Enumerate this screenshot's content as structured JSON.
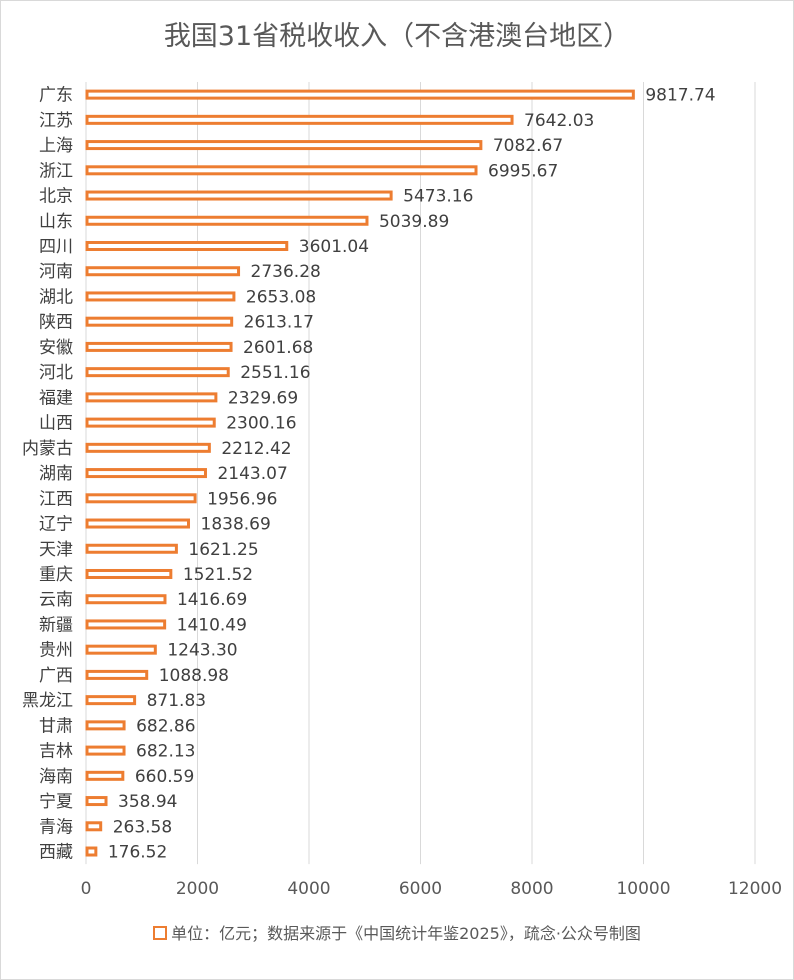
{
  "chart_data": {
    "type": "bar",
    "orientation": "horizontal",
    "title": "我国31省税收收入（不含港澳台地区）",
    "categories": [
      "广东",
      "江苏",
      "上海",
      "浙江",
      "北京",
      "山东",
      "四川",
      "河南",
      "湖北",
      "陕西",
      "安徽",
      "河北",
      "福建",
      "山西",
      "内蒙古",
      "湖南",
      "江西",
      "辽宁",
      "天津",
      "重庆",
      "云南",
      "新疆",
      "贵州",
      "广西",
      "黑龙江",
      "甘肃",
      "吉林",
      "海南",
      "宁夏",
      "青海",
      "西藏"
    ],
    "values": [
      9817.74,
      7642.03,
      7082.67,
      6995.67,
      5473.16,
      5039.89,
      3601.04,
      2736.28,
      2653.08,
      2613.17,
      2601.68,
      2551.16,
      2329.69,
      2300.16,
      2212.42,
      2143.07,
      1956.96,
      1838.69,
      1621.25,
      1521.52,
      1416.69,
      1410.49,
      1243.3,
      1088.98,
      871.83,
      682.86,
      682.13,
      660.59,
      358.94,
      263.58,
      176.52
    ],
    "value_labels": [
      "9817.74",
      "7642.03",
      "7082.67",
      "6995.67",
      "5473.16",
      "5039.89",
      "3601.04",
      "2736.28",
      "2653.08",
      "2613.17",
      "2601.68",
      "2551.16",
      "2329.69",
      "2300.16",
      "2212.42",
      "2143.07",
      "1956.96",
      "1838.69",
      "1621.25",
      "1521.52",
      "1416.69",
      "1410.49",
      "1243.30",
      "1088.98",
      "871.83",
      "682.86",
      "682.13",
      "660.59",
      "358.94",
      "263.58",
      "176.52"
    ],
    "xlim": [
      0,
      12000
    ],
    "xticks": [
      "0",
      "2000",
      "4000",
      "6000",
      "8000",
      "10000",
      "12000"
    ],
    "grid": true,
    "legend_position": "bottom",
    "legend_text": "单位：亿元；数据来源于《中国统计年鉴2025》，疏念·公众号制图",
    "colors": {
      "bar_border": "#ED7D31",
      "bar_fill": "#FFFFFF",
      "grid": "#D9D9D9",
      "text": "#404040"
    }
  }
}
